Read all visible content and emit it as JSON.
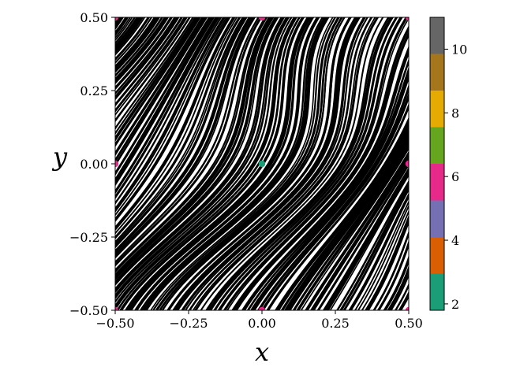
{
  "chart_data": {
    "type": "line",
    "title": "",
    "xlabel": "x",
    "ylabel": "y",
    "xlim": [
      -0.5,
      0.5
    ],
    "ylim": [
      -0.5,
      0.5
    ],
    "x_ticks": [
      -0.5,
      -0.25,
      0.0,
      0.25,
      0.5
    ],
    "y_ticks": [
      -0.5,
      -0.25,
      0.0,
      0.25,
      0.5
    ],
    "x_tick_labels": [
      "−0.50",
      "−0.25",
      "0.00",
      "0.25",
      "0.50"
    ],
    "y_tick_labels": [
      "−0.50",
      "−0.25",
      "0.00",
      "0.25",
      "0.50"
    ],
    "grid": false,
    "line_color": "#000000",
    "colorbar": {
      "min": 1.8,
      "max": 11.0,
      "tick_labels": [
        "2",
        "4",
        "6",
        "8",
        "10"
      ],
      "tick_values": [
        2,
        4,
        6,
        8,
        10
      ],
      "bins": [
        {
          "from": 1.8,
          "to": 2.95,
          "color": "#1b9e77"
        },
        {
          "from": 2.95,
          "to": 4.1,
          "color": "#d95f02"
        },
        {
          "from": 4.1,
          "to": 5.25,
          "color": "#7570b3"
        },
        {
          "from": 5.25,
          "to": 6.4,
          "color": "#e7298a"
        },
        {
          "from": 6.4,
          "to": 7.55,
          "color": "#66a61e"
        },
        {
          "from": 7.55,
          "to": 8.7,
          "color": "#e6ab02"
        },
        {
          "from": 8.7,
          "to": 9.85,
          "color": "#a6761d"
        },
        {
          "from": 9.85,
          "to": 11.0,
          "color": "#666666"
        }
      ]
    },
    "periodic_points": [
      {
        "x": 0.0,
        "y": 0.0,
        "period": 2
      },
      {
        "x": -0.5,
        "y": 0.0,
        "period": 6
      },
      {
        "x": 0.5,
        "y": 0.0,
        "period": 6
      },
      {
        "x": 0.0,
        "y": 0.5,
        "period": 6
      },
      {
        "x": 0.0,
        "y": -0.5,
        "period": 6
      },
      {
        "x": -0.5,
        "y": 0.5,
        "period": 6
      },
      {
        "x": 0.5,
        "y": 0.5,
        "period": 6
      },
      {
        "x": -0.5,
        "y": -0.5,
        "period": 6
      },
      {
        "x": 0.5,
        "y": -0.5,
        "period": 6
      }
    ]
  }
}
